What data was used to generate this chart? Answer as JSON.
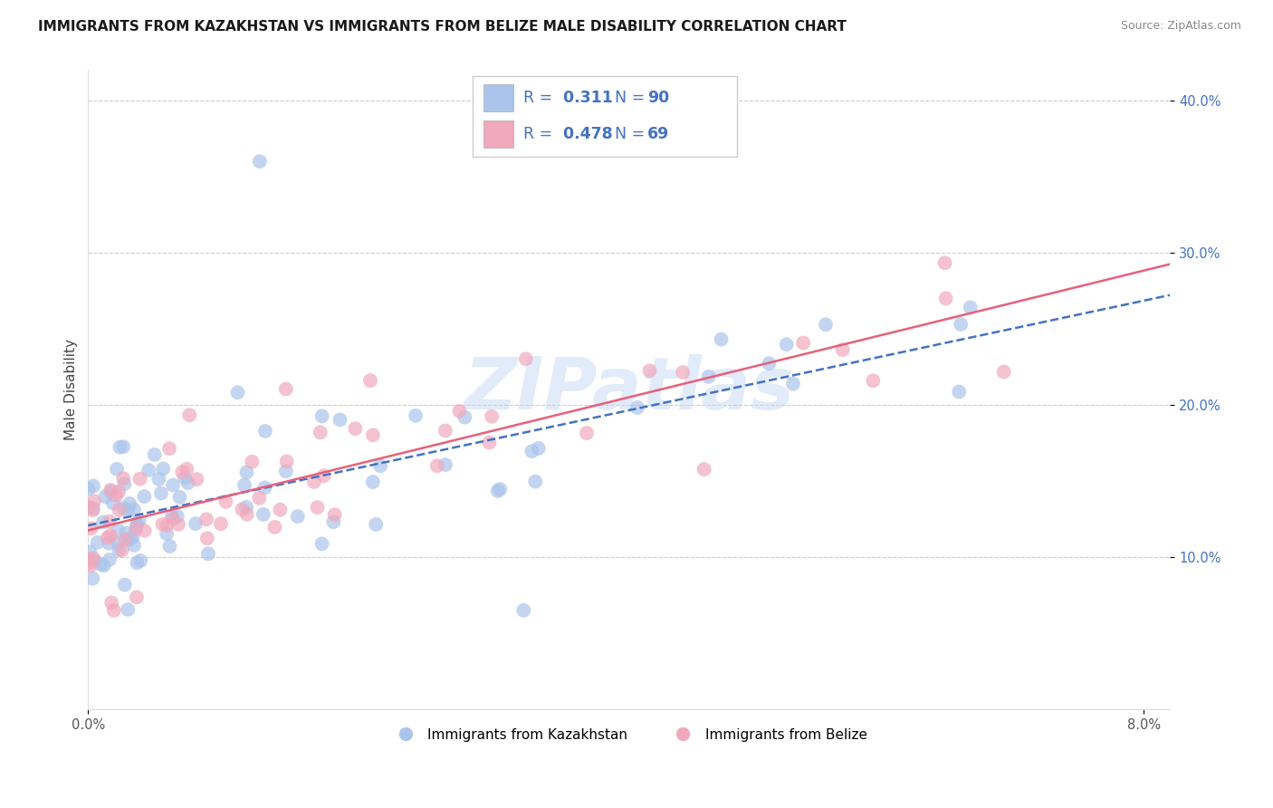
{
  "title": "IMMIGRANTS FROM KAZAKHSTAN VS IMMIGRANTS FROM BELIZE MALE DISABILITY CORRELATION CHART",
  "source": "Source: ZipAtlas.com",
  "ylabel": "Male Disability",
  "xlim": [
    0.0,
    0.082
  ],
  "ylim": [
    0.0,
    0.42
  ],
  "y_ticks": [
    0.1,
    0.2,
    0.3,
    0.4
  ],
  "y_tick_labels": [
    "10.0%",
    "20.0%",
    "30.0%",
    "40.0%"
  ],
  "series1_color": "#aac4eb",
  "series2_color": "#f0a8bc",
  "series1_line_color": "#4472c4",
  "series2_line_color": "#e8607a",
  "R1": 0.311,
  "N1": 90,
  "R2": 0.478,
  "N2": 69,
  "legend1_label": "Immigrants from Kazakhstan",
  "legend2_label": "Immigrants from Belize",
  "watermark": "ZIPatlas",
  "background_color": "#ffffff",
  "grid_color": "#cccccc",
  "title_fontsize": 11,
  "axis_label_fontsize": 11,
  "tick_fontsize": 10.5,
  "legend_text_color": "#4472c4",
  "r_label_color": "#333333"
}
